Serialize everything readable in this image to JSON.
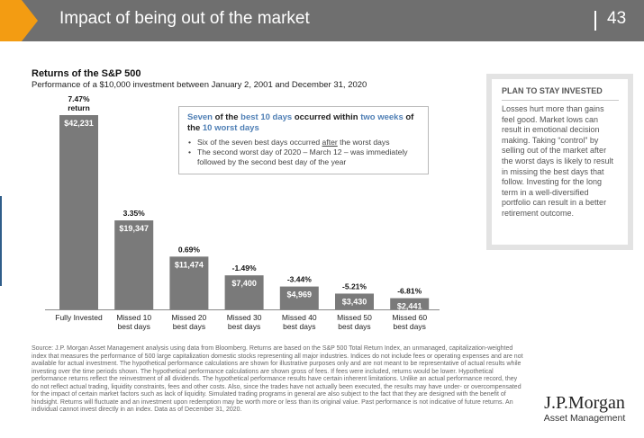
{
  "slide": {
    "title": "Impact of being out of the market",
    "page_number": "43"
  },
  "chart_data": {
    "type": "bar",
    "title": "Returns of the S&P 500",
    "subtitle": "Performance of a $10,000 investment between January 2, 2001 and December 31, 2020",
    "categories": [
      [
        "Fully Invested"
      ],
      [
        "Missed 10",
        "best days"
      ],
      [
        "Missed 20",
        "best days"
      ],
      [
        "Missed 30",
        "best days"
      ],
      [
        "Missed 40",
        "best days"
      ],
      [
        "Missed 50",
        "best days"
      ],
      [
        "Missed 60",
        "best days"
      ]
    ],
    "values": [
      42231,
      19347,
      11474,
      7400,
      4969,
      3430,
      2441
    ],
    "value_labels": [
      "$42,231",
      "$19,347",
      "$11,474",
      "$7,400",
      "$4,969",
      "$3,430",
      "$2,441"
    ],
    "return_labels": [
      [
        "7.47%",
        "return"
      ],
      [
        "3.35%"
      ],
      [
        "0.69%"
      ],
      [
        "-1.49%"
      ],
      [
        "-3.44%"
      ],
      [
        "-5.21%"
      ],
      [
        "-6.81%"
      ]
    ],
    "ylim": [
      0,
      42231
    ],
    "grid": false,
    "bar_colors": [
      "#7a7a7a",
      "#7a7a7a",
      "#7a7a7a",
      "#7a7a7a",
      "#7a7a7a",
      "#7a7a7a",
      "#7a7a7a"
    ]
  },
  "callout": {
    "headline_parts": [
      {
        "text": "Seven",
        "dark": false
      },
      {
        "text": " of the ",
        "dark": true
      },
      {
        "text": "best 10 days",
        "dark": false
      },
      {
        "text": " occurred within ",
        "dark": true
      },
      {
        "text": "two weeks",
        "dark": false
      },
      {
        "text": " of the ",
        "dark": true
      },
      {
        "text": "10 worst days",
        "dark": false
      }
    ],
    "bullet1_before": "Six of the seven best days occurred ",
    "bullet1_underlined": "after",
    "bullet1_after": " the worst days",
    "bullet2": "The second worst day of 2020 – March 12 – was immediately followed by the second best day of the year"
  },
  "sidebar": {
    "heading": "PLAN TO STAY INVESTED",
    "body": "Losses hurt more than gains feel good. Market lows can result in emotional decision making. Taking “control” by selling out of the market after the worst days is likely to result in missing the best days that follow. Investing for the long term in a well-diversified portfolio can result in a better retirement outcome."
  },
  "source_note": "Source: J.P. Morgan Asset Management analysis using data from Bloomberg. Returns are based on the S&P 500 Total Return Index, an unmanaged, capitalization-weighted index that measures the performance of 500 large capitalization domestic stocks representing all major industries. Indices do not include fees or operating expenses and are not available for actual investment. The hypothetical performance calculations are shown for illustrative purposes only and are not meant to be representative of actual results while investing over the time periods shown. The hypothetical performance calculations are shown gross of fees. If fees were included, returns would be lower. Hypothetical performance returns reflect the reinvestment of all dividends. The hypothetical performance results have certain inherent limitations. Unlike an actual performance record, they do not reflect actual trading, liquidity constraints, fees and other costs. Also, since the trades have not actually been executed, the results may have under- or overcompensated for the impact of certain market factors such as lack of liquidity. Simulated trading programs in general are also subject to the fact that they are designed with the benefit of hindsight. Returns will fluctuate and an investment upon redemption may be worth more or less than its original value. Past performance is not indicative of future returns. An individual cannot invest directly in an index. Data as of December 31, 2020.",
  "brand": {
    "logo_main": "J.P.Morgan",
    "logo_sub": "Asset Management",
    "accent_orange": "#f39c12",
    "header_gray": "#6f6f6f",
    "callout_blue": "#4f7fb5"
  }
}
